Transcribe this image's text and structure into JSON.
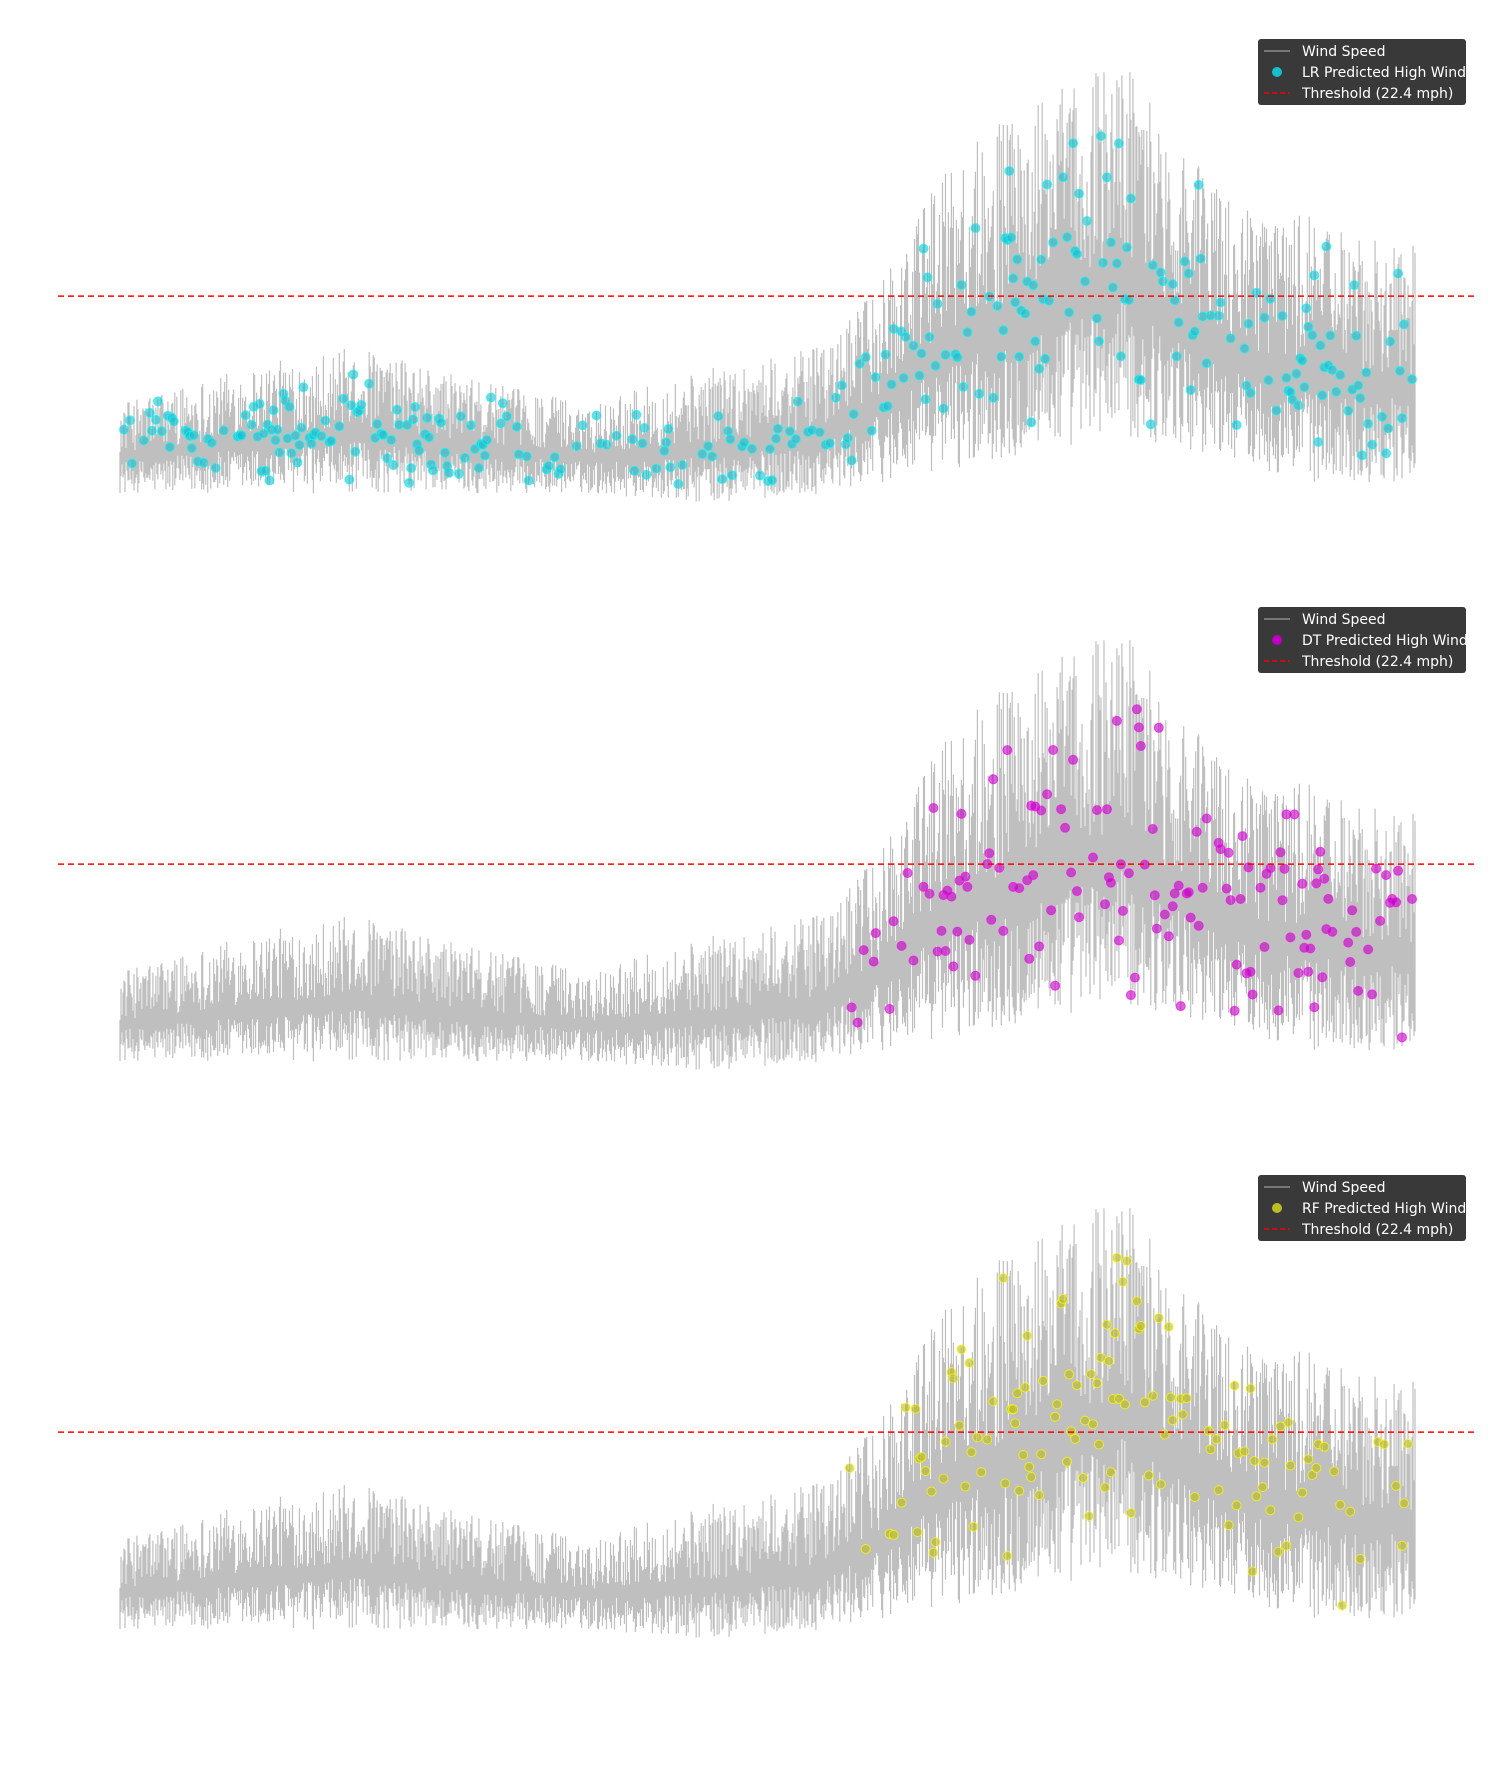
{
  "figure": {
    "background": "#ffffff"
  },
  "chart_data": [
    {
      "type": "line",
      "title": "",
      "xlabel": "",
      "ylabel": "",
      "xlim": [
        0,
        2200
      ],
      "ylim": [
        0,
        45
      ],
      "grid": false,
      "legend_position": "top-right",
      "threshold": {
        "value": 22.4,
        "label": "Threshold (22.4 mph)",
        "color": "#ff0000",
        "style": "dashed"
      },
      "series": [
        {
          "name": "Wind Speed",
          "kind": "line",
          "color": "#bfbfbf",
          "envelope_x": [
            0,
            200,
            400,
            600,
            800,
            1000,
            1200,
            1300,
            1400,
            1500,
            1600,
            1700,
            1800,
            1900,
            2000,
            2100,
            2200
          ],
          "envelope_low": [
            5,
            5,
            5,
            5,
            5,
            4,
            5,
            6,
            7,
            8,
            9,
            10,
            9,
            8,
            6,
            6,
            6
          ],
          "envelope_high": [
            13,
            16,
            18,
            15,
            13,
            16,
            18,
            24,
            34,
            38,
            41,
            44,
            36,
            30,
            30,
            28,
            27
          ]
        },
        {
          "name": "LR Predicted High Wind",
          "kind": "scatter",
          "color": "#17becf",
          "outline": "#00ffff",
          "predicts_above": 10
        }
      ]
    },
    {
      "type": "line",
      "title": "",
      "xlabel": "",
      "ylabel": "",
      "xlim": [
        0,
        2200
      ],
      "ylim": [
        0,
        45
      ],
      "grid": false,
      "legend_position": "top-right",
      "threshold": {
        "value": 22.4,
        "label": "Threshold (22.4 mph)",
        "color": "#ff0000",
        "style": "dashed"
      },
      "series": [
        {
          "name": "Wind Speed",
          "kind": "line",
          "color": "#bfbfbf"
        },
        {
          "name": "DT Predicted High Wind",
          "kind": "scatter",
          "color": "#c000c0",
          "outline": "#ff00ff",
          "predicts_above": 18
        }
      ]
    },
    {
      "type": "line",
      "title": "",
      "xlabel": "",
      "ylabel": "",
      "xlim": [
        0,
        2200
      ],
      "ylim": [
        0,
        45
      ],
      "grid": false,
      "legend_position": "top-right",
      "threshold": {
        "value": 22.4,
        "label": "Threshold (22.4 mph)",
        "color": "#ff0000",
        "style": "dashed"
      },
      "series": [
        {
          "name": "Wind Speed",
          "kind": "line",
          "color": "#bfbfbf"
        },
        {
          "name": "RF Predicted High Wind",
          "kind": "scatter",
          "color": "#bcbd22",
          "outline": "#ffff00",
          "predicts_above": 20
        }
      ]
    }
  ]
}
